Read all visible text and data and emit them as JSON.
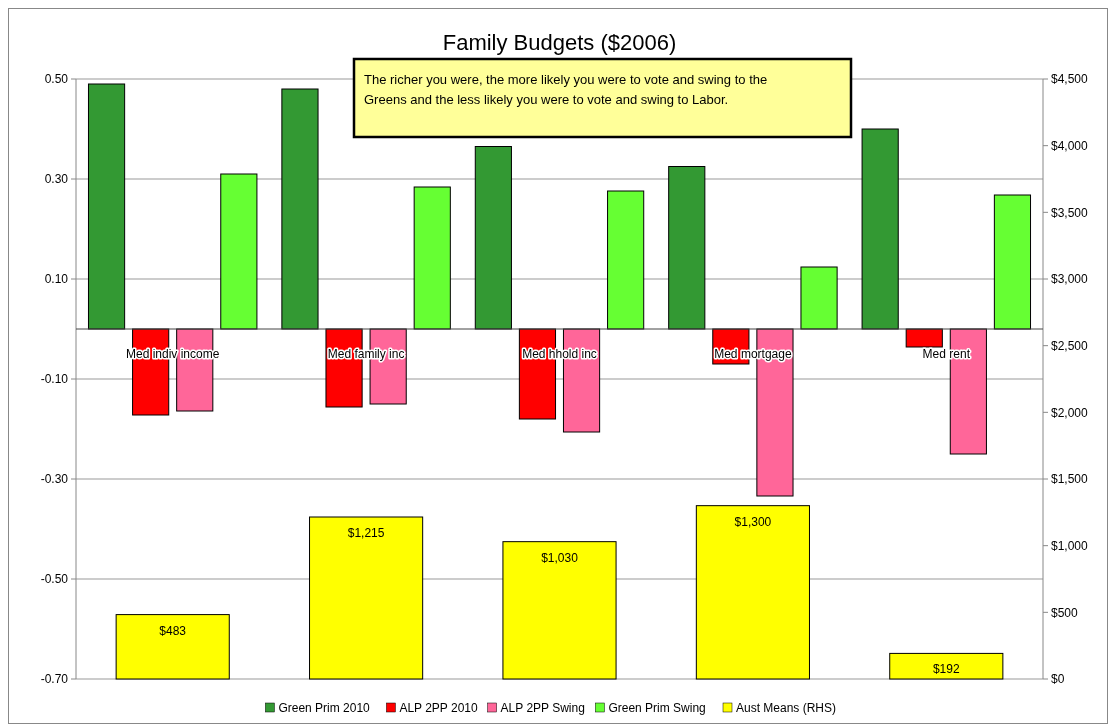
{
  "chart_data": {
    "type": "bar",
    "title": "Family Budgets ($2006)",
    "categories": [
      "Med indiv income",
      "Med family inc",
      "Med hhold inc",
      "Med mortgage",
      "Med rent"
    ],
    "series": [
      {
        "name": "Green Prim 2010",
        "color": "#339933",
        "values": [
          0.49,
          0.48,
          0.365,
          0.325,
          0.4
        ]
      },
      {
        "name": "ALP 2PP 2010",
        "color": "#ff0000",
        "values": [
          -0.172,
          -0.156,
          -0.18,
          -0.07,
          -0.036
        ]
      },
      {
        "name": "ALP 2PP Swing",
        "color": "#ff6699",
        "values": [
          -0.164,
          -0.15,
          -0.206,
          -0.334,
          -0.25
        ]
      },
      {
        "name": "Green Prim Swing",
        "color": "#66ff33",
        "values": [
          0.31,
          0.284,
          0.276,
          0.124,
          0.268
        ]
      },
      {
        "name": "Aust Means (RHS)",
        "color": "#ffff00",
        "axis": "y2",
        "values": [
          483,
          1215,
          1030,
          1300,
          192
        ],
        "value_labels": [
          "$483",
          "$1,215",
          "$1,030",
          "$1,300",
          "$192"
        ]
      }
    ],
    "ylim": [
      -0.7,
      0.5
    ],
    "yticks": [
      {
        "value": -0.7,
        "label": "-0.70"
      },
      {
        "value": -0.5,
        "label": "-0.50"
      },
      {
        "value": -0.3,
        "label": "-0.30"
      },
      {
        "value": -0.1,
        "label": "-0.10"
      },
      {
        "value": 0.1,
        "label": "0.10"
      },
      {
        "value": 0.3,
        "label": "0.30"
      },
      {
        "value": 0.5,
        "label": "0.50"
      }
    ],
    "y2lim": [
      0,
      4500
    ],
    "y2ticks": [
      {
        "value": 0,
        "label": "$0"
      },
      {
        "value": 500,
        "label": "$500"
      },
      {
        "value": 1000,
        "label": "$1,000"
      },
      {
        "value": 1500,
        "label": "$1,500"
      },
      {
        "value": 2000,
        "label": "$2,000"
      },
      {
        "value": 2500,
        "label": "$2,500"
      },
      {
        "value": 3000,
        "label": "$3,000"
      },
      {
        "value": 3500,
        "label": "$3,500"
      },
      {
        "value": 4000,
        "label": "$4,000"
      },
      {
        "value": 4500,
        "label": "$4,500"
      }
    ],
    "grid": "y",
    "legend": "bottom",
    "annotations": [
      "The richer you were, the more likely you were to vote and swing to the Greens and the less likely you were to vote and swing to Labor."
    ]
  }
}
